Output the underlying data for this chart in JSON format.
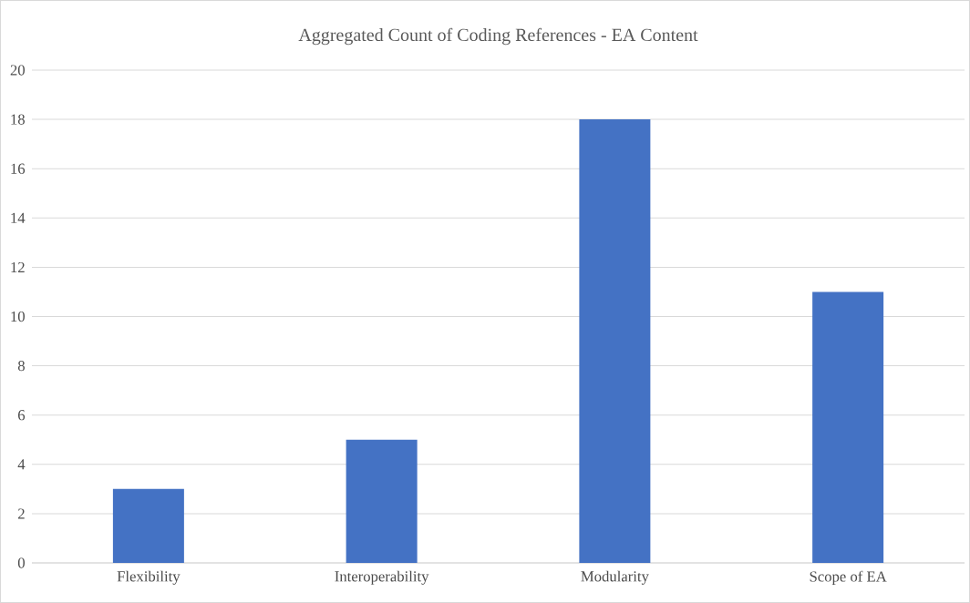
{
  "chart_data": {
    "type": "bar",
    "title": "Aggregated Count of Coding References - EA Content",
    "categories": [
      "Flexibility",
      "Interoperability",
      "Modularity",
      "Scope of EA"
    ],
    "values": [
      3,
      5,
      18,
      11
    ],
    "color": "#4472c4",
    "ylim": [
      0,
      20
    ],
    "yticks": [
      0,
      2,
      4,
      6,
      8,
      10,
      12,
      14,
      16,
      18,
      20
    ],
    "grid": "y"
  }
}
